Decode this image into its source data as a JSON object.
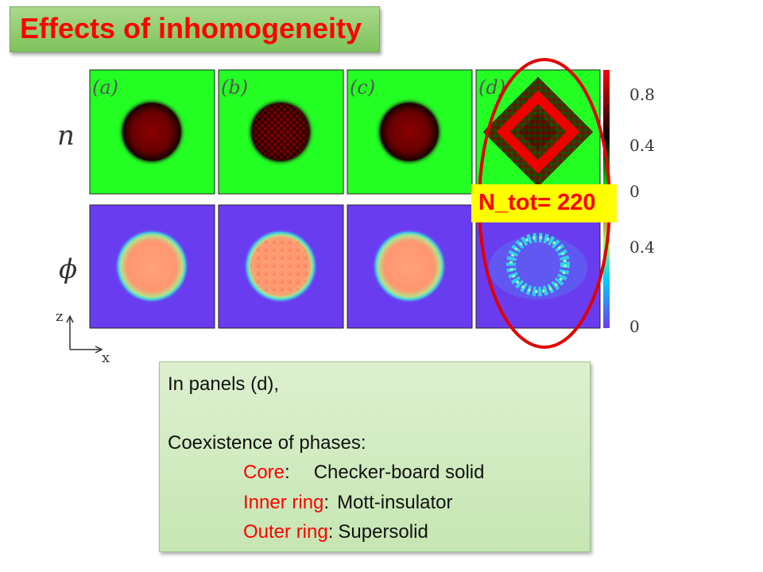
{
  "title": "Effects of inhomogeneity",
  "figure": {
    "panels": [
      "(a)",
      "(b)",
      "(c)",
      "(d)"
    ],
    "row_labels": [
      "n",
      "ϕ"
    ],
    "n_colorbar_ticks": [
      "0.8",
      "0.4",
      "0"
    ],
    "phi_colorbar_ticks": [
      "0.4",
      "0"
    ],
    "axis_z": "z",
    "axis_x": "x",
    "colors": {
      "n_background": "#23ff23",
      "n_high": "#7a0000",
      "phi_background": "#6a3cf0",
      "phi_high": "#ff9a66",
      "highlight": "#e00000"
    }
  },
  "annotation": "N_tot= 220",
  "notes": {
    "intro": "In panels (d),",
    "heading": "Coexistence of phases:",
    "items": [
      {
        "key": "Core",
        "sep": ":",
        "value": "Checker-board solid"
      },
      {
        "key": "Inner ring",
        "sep": ":",
        "value": "Mott-insulator"
      },
      {
        "key": "Outer ring",
        "sep": ":",
        "value": "Supersolid"
      }
    ]
  }
}
